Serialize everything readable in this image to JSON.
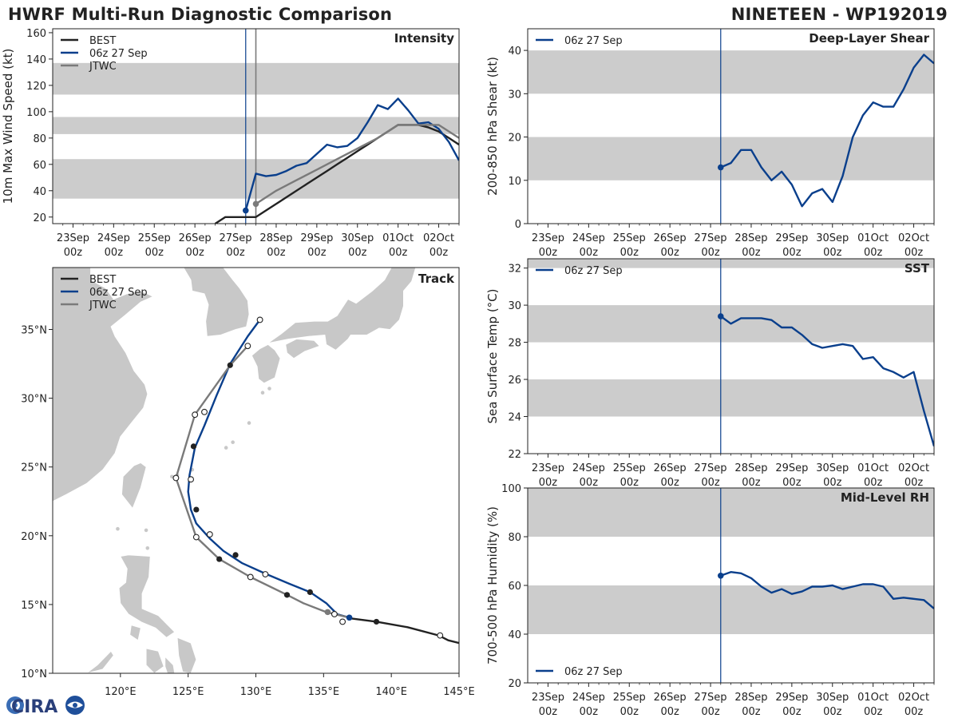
{
  "header": {
    "title": "HWRF Multi-Run Diagnostic Comparison",
    "storm": "NINETEEN - WP192019"
  },
  "logo": {
    "text": "CIRA"
  },
  "colors": {
    "best": "#222222",
    "run": "#0a3f8c",
    "jtwc": "#7a7a7a",
    "band": "#cccccc",
    "land": "#c8c8c8"
  },
  "time_axis": {
    "ticks": [
      {
        "day": "23Sep",
        "hour": "00z"
      },
      {
        "day": "24Sep",
        "hour": "00z"
      },
      {
        "day": "25Sep",
        "hour": "00z"
      },
      {
        "day": "26Sep",
        "hour": "00z"
      },
      {
        "day": "27Sep",
        "hour": "00z"
      },
      {
        "day": "28Sep",
        "hour": "00z"
      },
      {
        "day": "29Sep",
        "hour": "00z"
      },
      {
        "day": "30Sep",
        "hour": "00z"
      },
      {
        "day": "01Oct",
        "hour": "00z"
      },
      {
        "day": "02Oct",
        "hour": "00z"
      }
    ],
    "range_hours": [
      -12,
      228
    ],
    "init_hour": 102,
    "jtwc_line_hour": 108
  },
  "chart_data": [
    {
      "id": "intensity",
      "type": "line",
      "title": "Intensity",
      "ylabel": "10m Max Wind Speed (kt)",
      "ylim": [
        15,
        163
      ],
      "yticks": [
        20,
        40,
        60,
        80,
        100,
        120,
        140,
        160
      ],
      "bands": [
        [
          34,
          64
        ],
        [
          83,
          96
        ],
        [
          113,
          137
        ]
      ],
      "legend": [
        "BEST",
        "06z 27 Sep",
        "JTWC"
      ],
      "series": [
        {
          "name": "BEST",
          "x": [
            84,
            90,
            96,
            102,
            108,
            114,
            120,
            126,
            132,
            138,
            144,
            150,
            156,
            162,
            168,
            174,
            180,
            186,
            192,
            198,
            204,
            210,
            216,
            222,
            228
          ],
          "y": [
            15,
            20,
            20,
            20,
            20,
            25,
            30,
            35,
            40,
            45,
            50,
            55,
            60,
            65,
            70,
            75,
            80,
            85,
            90,
            90,
            90,
            88,
            85,
            80,
            75
          ]
        },
        {
          "name": "06z 27 Sep",
          "x": [
            102,
            108,
            114,
            120,
            126,
            132,
            138,
            144,
            150,
            156,
            162,
            168,
            174,
            180,
            186,
            192,
            198,
            204,
            210,
            216,
            222,
            228
          ],
          "y": [
            25,
            53,
            51,
            52,
            55,
            59,
            61,
            68,
            75,
            73,
            74,
            80,
            92,
            105,
            102,
            110,
            101,
            91,
            92,
            87,
            77,
            63
          ]
        },
        {
          "name": "JTWC",
          "x": [
            108,
            120,
            132,
            144,
            156,
            168,
            180,
            192,
            204,
            216,
            228
          ],
          "y": [
            30,
            40,
            48,
            56,
            64,
            72,
            80,
            90,
            90,
            90,
            80
          ]
        }
      ]
    },
    {
      "id": "shear",
      "type": "line",
      "title": "Deep-Layer Shear",
      "ylabel": "200-850 hPa Shear (kt)",
      "ylim": [
        0,
        45
      ],
      "yticks": [
        0,
        10,
        20,
        30,
        40
      ],
      "bands": [
        [
          10,
          20
        ],
        [
          30,
          40
        ]
      ],
      "legend": [
        "06z 27 Sep"
      ],
      "series": [
        {
          "name": "06z 27 Sep",
          "x": [
            102,
            108,
            114,
            120,
            126,
            132,
            138,
            144,
            150,
            156,
            162,
            168,
            174,
            180,
            186,
            192,
            198,
            204,
            210,
            216,
            222,
            228
          ],
          "y": [
            13,
            14,
            17,
            17,
            13,
            10,
            12,
            9,
            4,
            7,
            8,
            5,
            11,
            20,
            25,
            28,
            27,
            27,
            31,
            36,
            39,
            37
          ]
        }
      ]
    },
    {
      "id": "sst",
      "type": "line",
      "title": "SST",
      "ylabel": "Sea Surface Temp (°C)",
      "ylim": [
        22,
        32.5
      ],
      "yticks": [
        22,
        24,
        26,
        28,
        30,
        32
      ],
      "bands": [
        [
          24,
          26
        ],
        [
          28,
          30
        ],
        [
          32,
          34
        ]
      ],
      "legend": [
        "06z 27 Sep"
      ],
      "series": [
        {
          "name": "06z 27 Sep",
          "x": [
            102,
            108,
            114,
            120,
            126,
            132,
            138,
            144,
            150,
            156,
            162,
            168,
            174,
            180,
            186,
            192,
            198,
            204,
            210,
            216,
            222,
            228
          ],
          "y": [
            29.4,
            29.0,
            29.3,
            29.3,
            29.3,
            29.2,
            28.8,
            28.8,
            28.4,
            27.9,
            27.7,
            27.8,
            27.9,
            27.8,
            27.1,
            27.2,
            26.6,
            26.4,
            26.1,
            26.4,
            24.3,
            22.4
          ]
        }
      ]
    },
    {
      "id": "rh",
      "type": "line",
      "title": "Mid-Level RH",
      "ylabel": "700-500 hPa Humidity (%)",
      "ylim": [
        20,
        100
      ],
      "yticks": [
        20,
        40,
        60,
        80,
        100
      ],
      "bands": [
        [
          40,
          60
        ],
        [
          80,
          100
        ]
      ],
      "legend": [
        "06z 27 Sep"
      ],
      "series": [
        {
          "name": "06z 27 Sep",
          "x": [
            102,
            108,
            114,
            120,
            126,
            132,
            138,
            144,
            150,
            156,
            162,
            168,
            174,
            180,
            186,
            192,
            198,
            204,
            210,
            216,
            222,
            228
          ],
          "y": [
            64,
            65.5,
            65,
            63,
            59.5,
            57,
            58.5,
            56.5,
            57.5,
            59.5,
            59.5,
            60,
            58.5,
            59.5,
            60.5,
            60.5,
            59.5,
            54.5,
            55,
            54.5,
            54,
            50.5
          ]
        }
      ]
    },
    {
      "id": "track",
      "type": "scatter",
      "title": "Track",
      "xlabel_ticks": [
        "120°E",
        "125°E",
        "130°E",
        "135°E",
        "140°E",
        "145°E"
      ],
      "ylabel_ticks": [
        "10°N",
        "15°N",
        "20°N",
        "25°N",
        "30°N",
        "35°N"
      ],
      "lon_range": [
        115,
        145
      ],
      "lat_range": [
        10,
        39.5
      ],
      "legend": [
        "BEST",
        "06z 27 Sep",
        "JTWC"
      ],
      "series": [
        {
          "name": "BEST",
          "lon": [
            145,
            144.2,
            143.5,
            141.2,
            138.9,
            136.9
          ],
          "lat": [
            12.2,
            12.4,
            12.75,
            13.35,
            13.75,
            14.0
          ]
        },
        {
          "name": "06z 27 Sep",
          "lon": [
            136.9,
            136.0,
            135.2,
            134.0,
            132.5,
            130.8,
            129.0,
            127.6,
            126.6,
            125.6,
            125.2,
            125.0,
            125.1,
            125.5,
            126.2,
            127.1,
            128.1,
            129.4,
            130.3
          ],
          "lat": [
            14.05,
            14.3,
            15.1,
            15.9,
            16.5,
            17.2,
            18.0,
            18.9,
            19.8,
            20.9,
            21.9,
            23.2,
            24.4,
            26.4,
            28.0,
            30.2,
            32.5,
            34.5,
            35.7
          ]
        },
        {
          "name": "JTWC",
          "lon": [
            136.9,
            135.2,
            133.5,
            132.3,
            129.6,
            127.3,
            125.6,
            124.1,
            125.5,
            128.1,
            129.4
          ],
          "lat": [
            14.05,
            14.45,
            15.1,
            15.7,
            17.0,
            18.3,
            19.9,
            24.2,
            28.8,
            32.4,
            33.8
          ]
        }
      ],
      "markers": {
        "best_filled": [
          [
            138.9,
            13.75
          ],
          [
            134.0,
            15.9
          ],
          [
            132.3,
            15.7
          ],
          [
            128.5,
            18.6
          ],
          [
            127.3,
            18.3
          ],
          [
            125.6,
            21.9
          ],
          [
            125.4,
            26.5
          ],
          [
            128.1,
            32.4
          ]
        ],
        "open": [
          [
            143.6,
            12.75
          ],
          [
            136.4,
            13.75
          ],
          [
            135.8,
            14.3
          ],
          [
            130.7,
            17.2
          ],
          [
            129.6,
            17.0
          ],
          [
            126.6,
            20.1
          ],
          [
            125.6,
            19.9
          ],
          [
            125.2,
            24.1
          ],
          [
            124.1,
            24.2
          ],
          [
            126.2,
            29.0
          ],
          [
            125.5,
            28.8
          ],
          [
            129.4,
            33.8
          ],
          [
            130.3,
            35.7
          ]
        ],
        "run_start": [
          136.9,
          14.05
        ],
        "jtwc_start": [
          135.3,
          14.45
        ]
      }
    }
  ]
}
